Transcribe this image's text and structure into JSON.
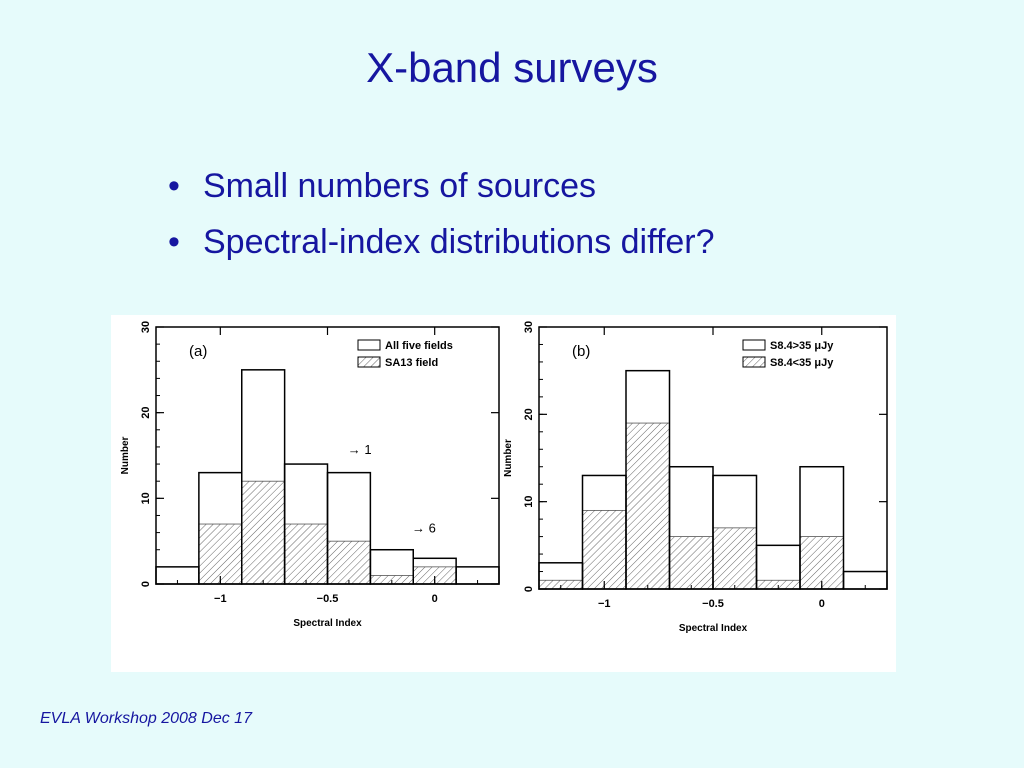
{
  "slide": {
    "title": "X-band surveys",
    "bullets": [
      "Small numbers of sources",
      "Spectral-index distributions differ?"
    ],
    "footer": "EVLA Workshop 2008 Dec 17"
  },
  "colors": {
    "text": "#1616a0",
    "background": "#e6fbfb"
  },
  "chart_data": [
    {
      "type": "bar",
      "panel_label": "(a)",
      "xlabel": "Spectral Index",
      "ylabel": "Number",
      "bin_edges": [
        -1.3,
        -1.1,
        -0.9,
        -0.7,
        -0.5,
        -0.3,
        -0.1,
        0.1,
        0.3
      ],
      "xlim": [
        -1.3,
        0.3
      ],
      "ylim": [
        0,
        30
      ],
      "xticks": [
        -1,
        -0.5,
        0
      ],
      "xtick_labels": [
        "−1",
        "−0.5",
        "0"
      ],
      "yticks": [
        0,
        10,
        20,
        30
      ],
      "ytick_labels": [
        "0",
        "10",
        "20",
        "30"
      ],
      "series": [
        {
          "name": "All five fields",
          "style": "open",
          "values": [
            2,
            13,
            25,
            14,
            13,
            4,
            3,
            2
          ]
        },
        {
          "name": "SA13 field",
          "style": "hatched",
          "values": [
            0,
            7,
            12,
            7,
            5,
            1,
            2,
            0
          ]
        }
      ],
      "legend_position": "top-right",
      "annotations": [
        {
          "text": "→ 1",
          "x": -0.35,
          "y": 15.2
        },
        {
          "text": "→ 6",
          "x": -0.05,
          "y": 6
        }
      ]
    },
    {
      "type": "bar",
      "panel_label": "(b)",
      "xlabel": "Spectral Index",
      "ylabel": "Number",
      "bin_edges": [
        -1.3,
        -1.1,
        -0.9,
        -0.7,
        -0.5,
        -0.3,
        -0.1,
        0.1,
        0.3
      ],
      "xlim": [
        -1.3,
        0.3
      ],
      "ylim": [
        0,
        30
      ],
      "xticks": [
        -1,
        -0.5,
        0
      ],
      "xtick_labels": [
        "−1",
        "−0.5",
        "0"
      ],
      "yticks": [
        0,
        10,
        20,
        30
      ],
      "ytick_labels": [
        "0",
        "10",
        "20",
        "30"
      ],
      "series": [
        {
          "name": "S8.4>35 μJy",
          "style": "open",
          "values": [
            3,
            13,
            25,
            14,
            13,
            5,
            14,
            2
          ]
        },
        {
          "name": "S8.4<35 μJy",
          "style": "hatched",
          "values": [
            1,
            9,
            19,
            6,
            7,
            1,
            6,
            0
          ]
        }
      ],
      "legend_position": "top-right",
      "annotations": []
    }
  ]
}
